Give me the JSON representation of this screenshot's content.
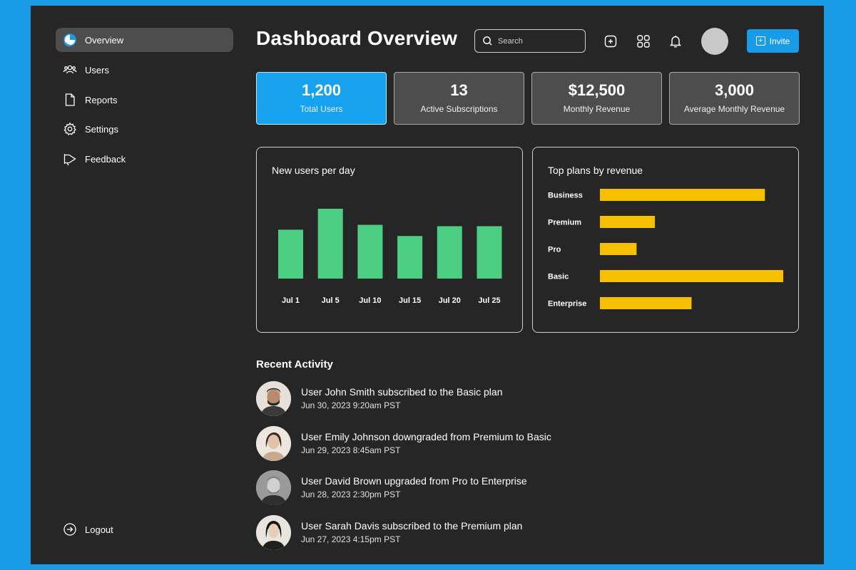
{
  "sidebar": {
    "items": [
      {
        "label": "Overview",
        "icon": "pie-chart-icon",
        "active": true
      },
      {
        "label": "Users",
        "icon": "users-icon",
        "active": false
      },
      {
        "label": "Reports",
        "icon": "document-icon",
        "active": false
      },
      {
        "label": "Settings",
        "icon": "gear-icon",
        "active": false
      },
      {
        "label": "Feedback",
        "icon": "megaphone-icon",
        "active": false
      }
    ],
    "logout_label": "Logout"
  },
  "header": {
    "title": "Dashboard Overview",
    "search_placeholder": "Search",
    "invite_label": "Invite"
  },
  "stats": [
    {
      "value": "1,200",
      "label": "Total Users"
    },
    {
      "value": "13",
      "label": "Active Subscriptions"
    },
    {
      "value": "$12,500",
      "label": "Monthly Revenue"
    },
    {
      "value": "3,000",
      "label": "Average Monthly Revenue"
    }
  ],
  "colors": {
    "accent": "#16a2ef",
    "bar_green": "#4ccf83",
    "bar_yellow": "#f6c000",
    "panel_bg": "#262626"
  },
  "chart_data": [
    {
      "type": "bar",
      "title": "New users per day",
      "categories": [
        "Jul 1",
        "Jul 5",
        "Jul 10",
        "Jul 15",
        "Jul 20",
        "Jul 25"
      ],
      "values": [
        70,
        100,
        77,
        61,
        75,
        75
      ],
      "ylim": [
        0,
        100
      ],
      "grid": false
    },
    {
      "type": "bar",
      "orientation": "horizontal",
      "title": "Top plans by revenue",
      "categories": [
        "Business",
        "Premium",
        "Pro",
        "Basic",
        "Enterprise"
      ],
      "values": [
        90,
        30,
        20,
        100,
        50
      ],
      "xlim": [
        0,
        100
      ],
      "grid": false
    }
  ],
  "activity": {
    "title": "Recent Activity",
    "items": [
      {
        "text": "User John Smith subscribed to the Basic plan",
        "time": "Jun 30, 2023 9:20am PST"
      },
      {
        "text": "User Emily Johnson downgraded from Premium to Basic",
        "time": "Jun 29, 2023 8:45am PST"
      },
      {
        "text": "User David Brown upgraded from Pro to Enterprise",
        "time": "Jun 28, 2023 2:30pm PST"
      },
      {
        "text": "User Sarah Davis subscribed to the Premium plan",
        "time": "Jun 27, 2023 4:15pm PST"
      }
    ]
  }
}
